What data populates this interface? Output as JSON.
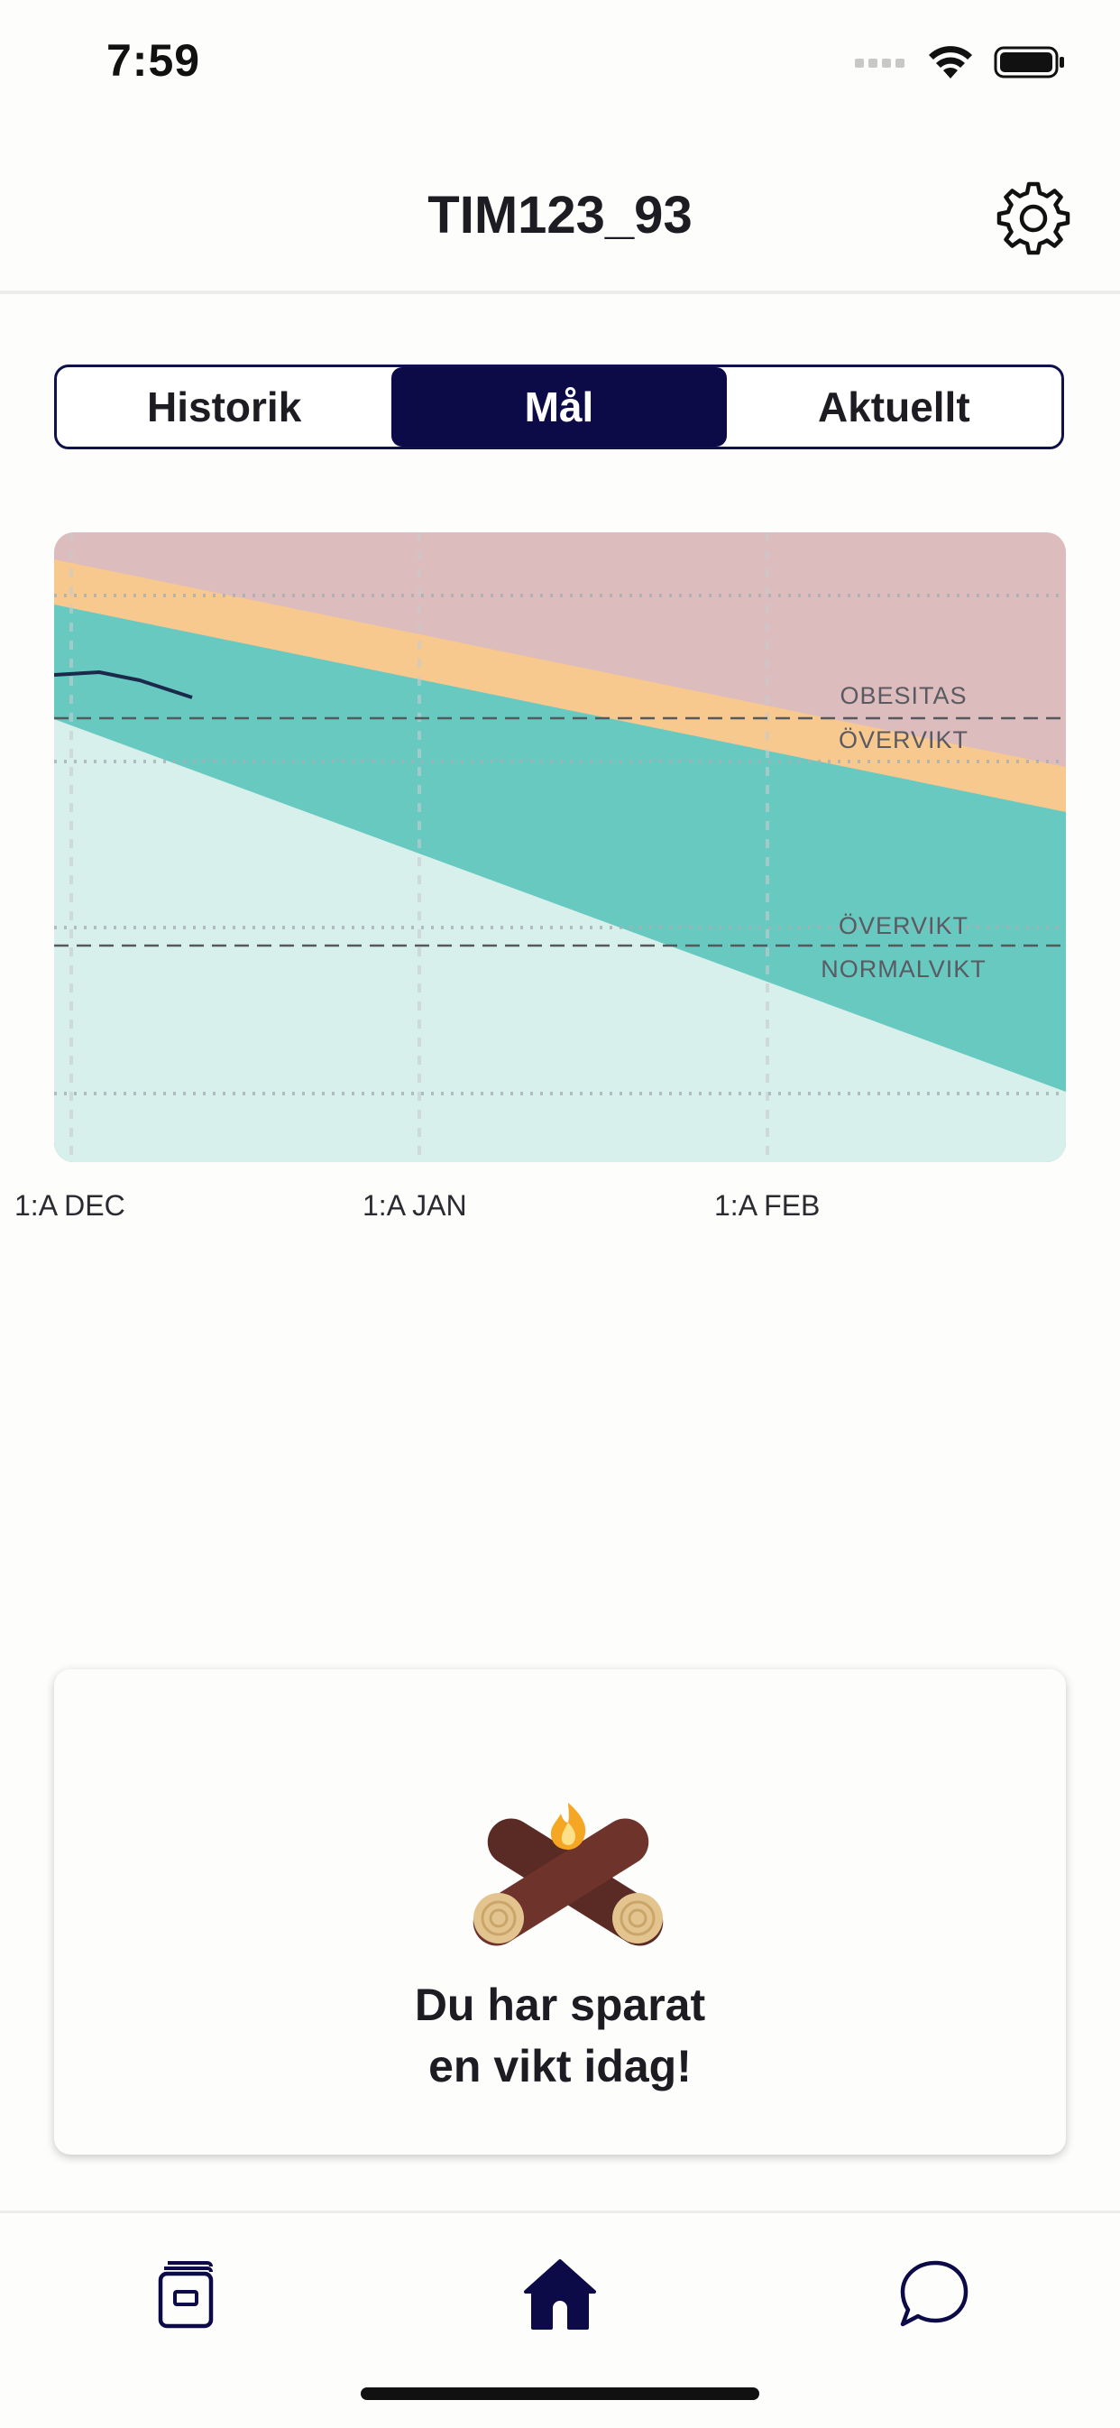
{
  "status_bar": {
    "time": "7:59"
  },
  "header": {
    "title": "TIM123_93"
  },
  "tabs": [
    {
      "label": "Historik",
      "active": false
    },
    {
      "label": "Mål",
      "active": true
    },
    {
      "label": "Aktuellt",
      "active": false
    }
  ],
  "chart": {
    "zone_labels": [
      "OBESITAS",
      "ÖVERVIKT",
      "ÖVERVIKT",
      "NORMALVIKT"
    ],
    "x_labels": [
      "1:A DEC",
      "1:A JAN",
      "1:A FEB"
    ],
    "colors": {
      "obesitas": "#dcbcbc",
      "overvikt": "#f7c98f",
      "goal_band": "#67c9c0",
      "normal": "#d8f0ec",
      "weight_line": "#1b2a4a"
    }
  },
  "saved_card": {
    "line1": "Du har sparat",
    "line2": "en vikt idag!",
    "icon": "campfire-icon"
  },
  "tabbar": {
    "items": [
      {
        "icon": "journal-icon",
        "active": false
      },
      {
        "icon": "home-icon",
        "active": true
      },
      {
        "icon": "chat-bubble-icon",
        "active": false
      }
    ]
  }
}
